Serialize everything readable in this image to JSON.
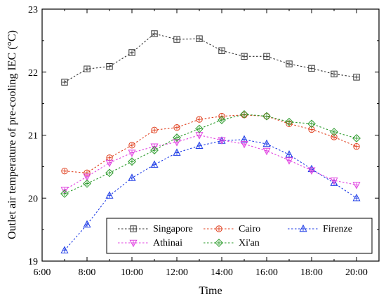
{
  "chart_data": {
    "type": "line",
    "title": "",
    "xlabel": "Time",
    "ylabel": "Outlet air temperature of pre-cooling IEC (°C)",
    "x": [
      7,
      8,
      9,
      10,
      11,
      12,
      13,
      14,
      15,
      16,
      17,
      18,
      19,
      20
    ],
    "xlim": [
      6,
      21
    ],
    "ylim": [
      19,
      23
    ],
    "xticks": [
      {
        "v": 6,
        "label": "6:00"
      },
      {
        "v": 8,
        "label": "8:00"
      },
      {
        "v": 10,
        "label": "10:00"
      },
      {
        "v": 12,
        "label": "12:00"
      },
      {
        "v": 14,
        "label": "14:00"
      },
      {
        "v": 16,
        "label": "16:00"
      },
      {
        "v": 18,
        "label": "18:00"
      },
      {
        "v": 20,
        "label": "20:00"
      }
    ],
    "yticks": [
      {
        "v": 19,
        "label": "19"
      },
      {
        "v": 20,
        "label": "20"
      },
      {
        "v": 21,
        "label": "21"
      },
      {
        "v": 22,
        "label": "22"
      },
      {
        "v": 23,
        "label": "23"
      }
    ],
    "grid": false,
    "legend_position": "bottom",
    "series": [
      {
        "name": "Singapore",
        "color": "#333333",
        "marker": "square",
        "values": [
          21.84,
          22.05,
          22.09,
          22.31,
          22.61,
          22.52,
          22.53,
          22.34,
          22.25,
          22.25,
          22.13,
          22.06,
          21.97,
          21.92
        ]
      },
      {
        "name": "Cairo",
        "color": "#e0401f",
        "marker": "circle",
        "values": [
          20.43,
          20.4,
          20.64,
          20.84,
          21.08,
          21.12,
          21.25,
          21.3,
          21.32,
          21.3,
          21.18,
          21.09,
          20.97,
          20.82
        ]
      },
      {
        "name": "Firenze",
        "color": "#1e3ce6",
        "marker": "triangle-up",
        "values": [
          19.17,
          19.58,
          20.04,
          20.32,
          20.53,
          20.72,
          20.83,
          20.91,
          20.93,
          20.86,
          20.69,
          20.46,
          20.24,
          20.0
        ]
      },
      {
        "name": "Athinai",
        "color": "#e040e0",
        "marker": "triangle-down",
        "values": [
          20.13,
          20.34,
          20.56,
          20.72,
          20.82,
          20.89,
          21.0,
          20.92,
          20.86,
          20.75,
          20.6,
          20.44,
          20.28,
          20.21
        ]
      },
      {
        "name": "Xi'an",
        "color": "#2a9a2a",
        "marker": "diamond",
        "values": [
          20.07,
          20.23,
          20.4,
          20.58,
          20.76,
          20.96,
          21.1,
          21.24,
          21.33,
          21.3,
          21.21,
          21.18,
          21.05,
          20.95
        ]
      }
    ]
  }
}
